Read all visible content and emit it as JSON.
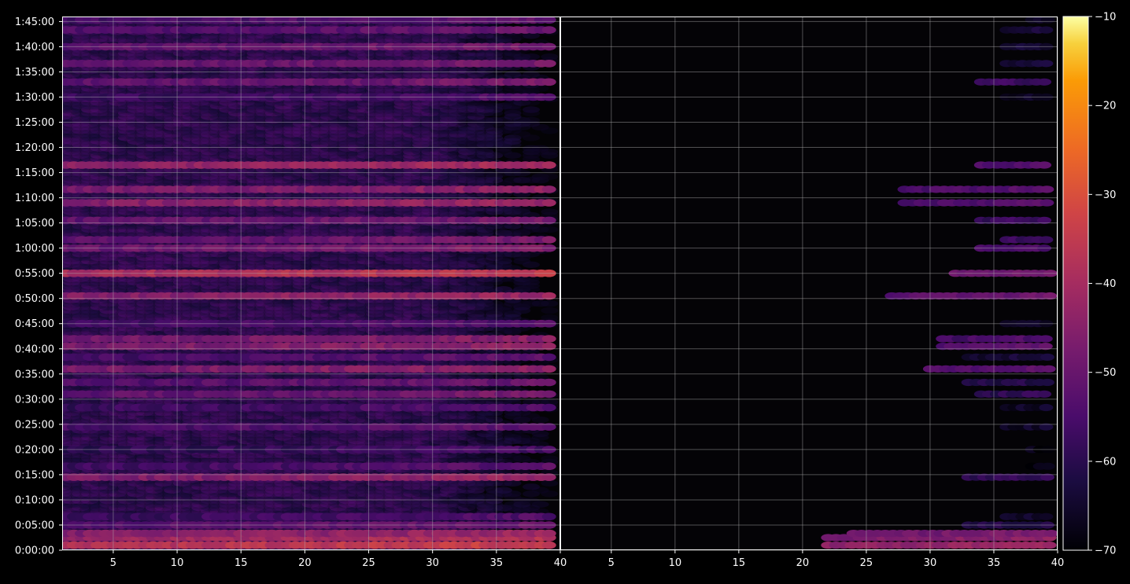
{
  "chart_data": {
    "type": "heatmap",
    "title": "",
    "xlabel": "",
    "ylabel": "",
    "panels": [
      {
        "name": "",
        "xlim": [
          1,
          40
        ],
        "x_ticks": [
          5,
          10,
          15,
          20,
          25,
          30,
          35,
          40
        ]
      },
      {
        "name": "",
        "xlim": [
          1,
          40
        ],
        "x_ticks": [
          5,
          10,
          15,
          20,
          25,
          30,
          35,
          40
        ]
      }
    ],
    "ylim_seconds": [
      0,
      6360
    ],
    "y_ticks": [
      {
        "value": 0,
        "label": "0:00:00"
      },
      {
        "value": 300,
        "label": "0:05:00"
      },
      {
        "value": 600,
        "label": "0:10:00"
      },
      {
        "value": 900,
        "label": "0:15:00"
      },
      {
        "value": 1200,
        "label": "0:20:00"
      },
      {
        "value": 1500,
        "label": "0:25:00"
      },
      {
        "value": 1800,
        "label": "0:30:00"
      },
      {
        "value": 2100,
        "label": "0:35:00"
      },
      {
        "value": 2400,
        "label": "0:40:00"
      },
      {
        "value": 2700,
        "label": "0:45:00"
      },
      {
        "value": 3000,
        "label": "0:50:00"
      },
      {
        "value": 3300,
        "label": "0:55:00"
      },
      {
        "value": 3600,
        "label": "1:00:00"
      },
      {
        "value": 3900,
        "label": "1:05:00"
      },
      {
        "value": 4200,
        "label": "1:10:00"
      },
      {
        "value": 4500,
        "label": "1:15:00"
      },
      {
        "value": 4800,
        "label": "1:20:00"
      },
      {
        "value": 5100,
        "label": "1:25:00"
      },
      {
        "value": 5400,
        "label": "1:30:00"
      },
      {
        "value": 5700,
        "label": "1:35:00"
      },
      {
        "value": 6000,
        "label": "1:40:00"
      },
      {
        "value": 6300,
        "label": "1:45:00"
      }
    ],
    "colorbar": {
      "colormap": "inferno",
      "range": [
        -70,
        -10
      ],
      "ticks": [
        {
          "value": -10,
          "label": "−10"
        },
        {
          "value": -20,
          "label": "−20"
        },
        {
          "value": -30,
          "label": "−30"
        },
        {
          "value": -40,
          "label": "−40"
        },
        {
          "value": -50,
          "label": "−50"
        },
        {
          "value": -60,
          "label": "−60"
        },
        {
          "value": -70,
          "label": "−70"
        }
      ]
    },
    "grid": true,
    "bands": [
      {
        "t": 60,
        "left": -36,
        "right": -45,
        "right_start": 22
      },
      {
        "t": 150,
        "left": -40,
        "right": -48,
        "right_start": 22
      },
      {
        "t": 200,
        "left": -44,
        "right": -50,
        "right_start": 24
      },
      {
        "t": 300,
        "left": -52,
        "right": -62,
        "right_start": 33
      },
      {
        "t": 400,
        "left": -56,
        "right": -66,
        "right_start": 36
      },
      {
        "t": 870,
        "left": -45,
        "right": -60,
        "right_start": 33
      },
      {
        "t": 1000,
        "left": -55,
        "right": -68,
        "right_start": 38
      },
      {
        "t": 1200,
        "left": -58,
        "right": -68,
        "right_start": 38
      },
      {
        "t": 1470,
        "left": -54,
        "right": -66,
        "right_start": 36
      },
      {
        "t": 1700,
        "left": -56,
        "right": -66,
        "right_start": 36
      },
      {
        "t": 1860,
        "left": -50,
        "right": -60,
        "right_start": 34
      },
      {
        "t": 2000,
        "left": -52,
        "right": -62,
        "right_start": 33
      },
      {
        "t": 2160,
        "left": -46,
        "right": -54,
        "right_start": 30
      },
      {
        "t": 2300,
        "left": -54,
        "right": -64,
        "right_start": 33
      },
      {
        "t": 2430,
        "left": -46,
        "right": -54,
        "right_start": 31
      },
      {
        "t": 2520,
        "left": -47,
        "right": -56,
        "right_start": 31
      },
      {
        "t": 2700,
        "left": -55,
        "right": -66,
        "right_start": 36
      },
      {
        "t": 3030,
        "left": -44,
        "right": -52,
        "right_start": 27
      },
      {
        "t": 3300,
        "left": -38,
        "right": -50,
        "right_start": 32
      },
      {
        "t": 3600,
        "left": -48,
        "right": -56,
        "right_start": 34
      },
      {
        "t": 3700,
        "left": -50,
        "right": -58,
        "right_start": 36
      },
      {
        "t": 3930,
        "left": -50,
        "right": -58,
        "right_start": 34
      },
      {
        "t": 4140,
        "left": -44,
        "right": -55,
        "right_start": 28
      },
      {
        "t": 4300,
        "left": -46,
        "right": -55,
        "right_start": 28
      },
      {
        "t": 4590,
        "left": -42,
        "right": -55,
        "right_start": 34
      },
      {
        "t": 5400,
        "left": -56,
        "right": -66,
        "right_start": 36
      },
      {
        "t": 5580,
        "left": -50,
        "right": -58,
        "right_start": 34
      },
      {
        "t": 5800,
        "left": -50,
        "right": -64,
        "right_start": 36
      },
      {
        "t": 6000,
        "left": -50,
        "right": -64,
        "right_start": 36
      },
      {
        "t": 6200,
        "left": -52,
        "right": -64,
        "right_start": 36
      },
      {
        "t": 6320,
        "left": -54,
        "right": -66,
        "right_start": 38
      }
    ]
  }
}
